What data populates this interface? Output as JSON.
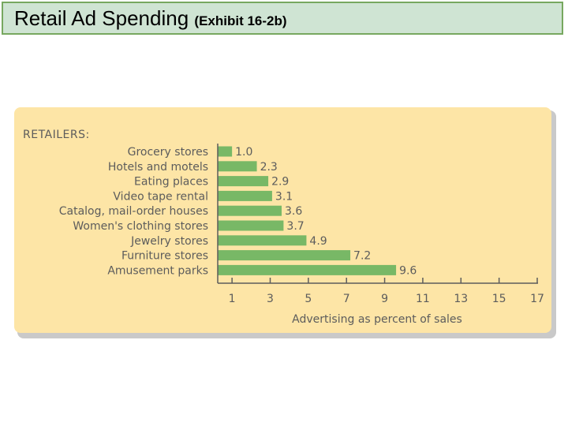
{
  "slide": {
    "title_main": "Retail Ad Spending",
    "title_sub": "(Exhibit 16-2b)"
  },
  "colors": {
    "bar": "#78b866",
    "panel": "#fde5a6",
    "title_bg": "#cfe4d3",
    "title_border": "#77a85f"
  },
  "chart_data": {
    "type": "bar",
    "orientation": "horizontal",
    "heading": "RETAILERS:",
    "categories": [
      "Grocery stores",
      "Hotels and motels",
      "Eating places",
      "Video tape rental",
      "Catalog, mail-order houses",
      "Women's clothing stores",
      "Jewelry stores",
      "Furniture stores",
      "Amusement parks"
    ],
    "values": [
      1.0,
      2.3,
      2.9,
      3.1,
      3.6,
      3.7,
      4.9,
      7.2,
      9.6
    ],
    "value_labels": [
      "1.0",
      "2.3",
      "2.9",
      "3.1",
      "3.6",
      "3.7",
      "4.9",
      "7.2",
      "9.6"
    ],
    "xticks": [
      "1",
      "3",
      "5",
      "7",
      "9",
      "11",
      "13",
      "15",
      "17"
    ],
    "xlabel": "Advertising as percent of sales",
    "xlim": [
      0.25,
      17
    ]
  }
}
